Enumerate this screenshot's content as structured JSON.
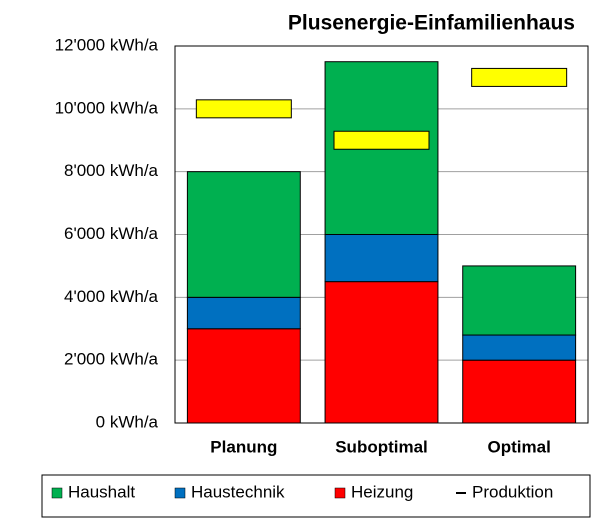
{
  "chart_data": {
    "type": "bar",
    "stacked": true,
    "title": "Plusenergie-Einfamilienhaus",
    "categories": [
      "Planung",
      "Suboptimal",
      "Optimal"
    ],
    "series": [
      {
        "name": "Haushalt",
        "color": "#00b050",
        "values": [
          4000,
          5500,
          2200
        ]
      },
      {
        "name": "Haustechnik",
        "color": "#0070c0",
        "values": [
          1000,
          1500,
          800
        ]
      },
      {
        "name": "Heizung",
        "color": "#ff0000",
        "values": [
          3000,
          4500,
          2000
        ]
      },
      {
        "name": "Produktion",
        "color": "#ffff00",
        "type": "marker",
        "values": [
          10000,
          9000,
          11000
        ]
      }
    ],
    "ylim": [
      0,
      12000
    ],
    "yticks": [
      {
        "value": 0,
        "label": "0 kWh/a"
      },
      {
        "value": 2000,
        "label": "2'000 kWh/a"
      },
      {
        "value": 4000,
        "label": "4'000 kWh/a"
      },
      {
        "value": 6000,
        "label": "6'000 kWh/a"
      },
      {
        "value": 8000,
        "label": "8'000 kWh/a"
      },
      {
        "value": 10000,
        "label": "10'000 kWh/a"
      },
      {
        "value": 12000,
        "label": "12'000 kWh/a"
      }
    ],
    "grid": true,
    "legend": "bottom"
  }
}
